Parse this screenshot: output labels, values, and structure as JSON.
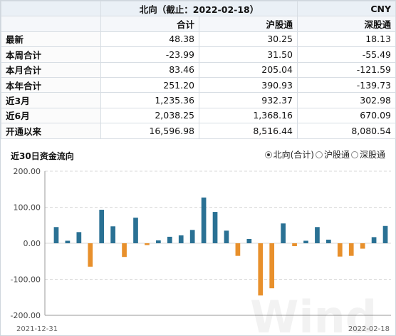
{
  "table": {
    "title": "北向（截止：2022-02-18）",
    "currency": "CNY",
    "columns": [
      "合计",
      "沪股通",
      "深股通"
    ],
    "rows": [
      {
        "label": "最新",
        "values": [
          "48.38",
          "30.25",
          "18.13"
        ]
      },
      {
        "label": "本周合计",
        "values": [
          "-23.99",
          "31.50",
          "-55.49"
        ]
      },
      {
        "label": "本月合计",
        "values": [
          "83.46",
          "205.04",
          "-121.59"
        ]
      },
      {
        "label": "本年合计",
        "values": [
          "251.20",
          "390.93",
          "-139.73"
        ]
      },
      {
        "label": "近3月",
        "values": [
          "1,235.36",
          "932.37",
          "302.98"
        ]
      },
      {
        "label": "近6月",
        "values": [
          "2,038.25",
          "1,368.16",
          "670.09"
        ]
      },
      {
        "label": "开通以来",
        "values": [
          "16,596.98",
          "8,516.44",
          "8,080.54"
        ]
      }
    ]
  },
  "chart_section": {
    "title": "近30日资金流向",
    "radios": [
      {
        "label": "北向(合计)",
        "checked": true
      },
      {
        "label": "沪股通",
        "checked": false
      },
      {
        "label": "深股通",
        "checked": false
      }
    ]
  },
  "watermark": "Wind",
  "chart_data": {
    "type": "bar",
    "x_start_label": "2021-12-31",
    "x_end_label": "2022-02-18",
    "ylim": [
      -200,
      200
    ],
    "yticks": [
      "200.00",
      "100.00",
      "0.00",
      "-100.00",
      "-200.00"
    ],
    "tick_values": [
      200,
      100,
      0,
      -100,
      -200
    ],
    "grid": true,
    "values": [
      45,
      7,
      31,
      -65,
      93,
      47,
      -38,
      71,
      -5,
      8,
      18,
      22,
      37,
      127,
      87,
      35,
      -35,
      12,
      -145,
      -125,
      55,
      -8,
      7,
      45,
      10,
      -37,
      -35,
      -15,
      17,
      48
    ],
    "colors": {
      "positive": "#2a7194",
      "negative": "#e8902c"
    }
  }
}
